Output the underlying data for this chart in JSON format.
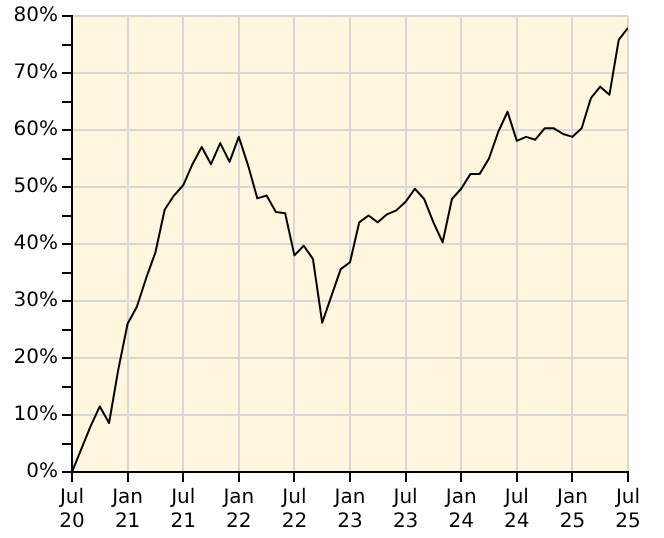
{
  "chart_data": {
    "type": "line",
    "color": "#000000",
    "grid": true,
    "legend": false,
    "marker": "none",
    "line_style": "solid",
    "x": [
      "2020-07",
      "2020-08",
      "2020-09",
      "2020-10",
      "2020-11",
      "2020-12",
      "2021-01",
      "2021-02",
      "2021-03",
      "2021-04",
      "2021-05",
      "2021-06",
      "2021-07",
      "2021-08",
      "2021-09",
      "2021-10",
      "2021-11",
      "2021-12",
      "2022-01",
      "2022-02",
      "2022-03",
      "2022-04",
      "2022-05",
      "2022-06",
      "2022-07",
      "2022-08",
      "2022-09",
      "2022-10",
      "2022-11",
      "2022-12",
      "2023-01",
      "2023-02",
      "2023-03",
      "2023-04",
      "2023-05",
      "2023-06",
      "2023-07",
      "2023-08",
      "2023-09",
      "2023-10",
      "2023-11",
      "2023-12",
      "2024-01",
      "2024-02",
      "2024-03",
      "2024-04",
      "2024-05",
      "2024-06",
      "2024-07",
      "2024-08",
      "2024-09",
      "2024-10",
      "2024-11",
      "2024-12",
      "2025-01",
      "2025-02",
      "2025-03",
      "2025-04",
      "2025-05",
      "2025-06",
      "2025-07"
    ],
    "values": [
      0,
      4,
      8,
      11.5,
      8.6,
      18,
      26,
      29,
      34,
      38.5,
      46,
      48.5,
      50.3,
      54,
      57,
      54,
      57.7,
      54.4,
      58.8,
      53.8,
      48,
      48.5,
      45.6,
      45.4,
      38,
      39.7,
      37.4,
      26.2,
      30.9,
      35.6,
      36.8,
      43.8,
      45,
      43.8,
      45.2,
      45.9,
      47.4,
      49.7,
      47.9,
      43.8,
      40.3,
      47.9,
      49.7,
      52.3,
      52.3,
      55,
      59.7,
      63.2,
      58.1,
      58.8,
      58.3,
      60.3,
      60.3,
      59.3,
      58.8,
      60.3,
      65.6,
      67.6,
      66.2,
      75.8,
      77.9
    ],
    "xlim": [
      "2020-07",
      "2025-07"
    ],
    "xticks": [
      {
        "value": "2020-07",
        "label": "Jul\n20"
      },
      {
        "value": "2021-01",
        "label": "Jan\n21"
      },
      {
        "value": "2021-07",
        "label": "Jul\n21"
      },
      {
        "value": "2022-01",
        "label": "Jan\n22"
      },
      {
        "value": "2022-07",
        "label": "Jul\n22"
      },
      {
        "value": "2023-01",
        "label": "Jan\n23"
      },
      {
        "value": "2023-07",
        "label": "Jul\n23"
      },
      {
        "value": "2024-01",
        "label": "Jan\n24"
      },
      {
        "value": "2024-07",
        "label": "Jul\n24"
      },
      {
        "value": "2025-01",
        "label": "Jan\n25"
      },
      {
        "value": "2025-07",
        "label": "Jul\n25"
      }
    ],
    "ylim": [
      0,
      80
    ],
    "yticks": [
      {
        "value": 0,
        "label": "0%"
      },
      {
        "value": 5,
        "label": null
      },
      {
        "value": 10,
        "label": "10%"
      },
      {
        "value": 15,
        "label": null
      },
      {
        "value": 20,
        "label": "20%"
      },
      {
        "value": 25,
        "label": null
      },
      {
        "value": 30,
        "label": "30%"
      },
      {
        "value": 35,
        "label": null
      },
      {
        "value": 40,
        "label": "40%"
      },
      {
        "value": 45,
        "label": null
      },
      {
        "value": 50,
        "label": "50%"
      },
      {
        "value": 55,
        "label": null
      },
      {
        "value": 60,
        "label": "60%"
      },
      {
        "value": 65,
        "label": null
      },
      {
        "value": 70,
        "label": "70%"
      },
      {
        "value": 75,
        "label": null
      },
      {
        "value": 80,
        "label": "80%"
      }
    ]
  }
}
